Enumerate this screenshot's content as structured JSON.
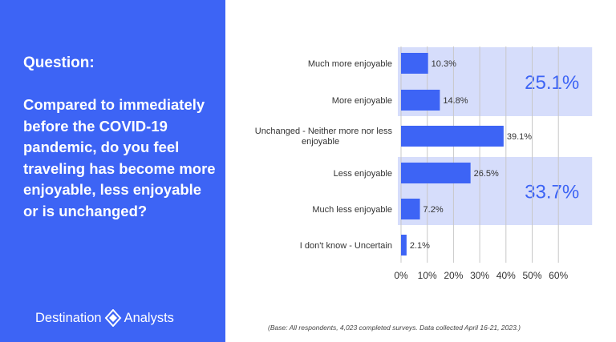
{
  "question_label": "Question:",
  "question_text": "Compared to immediately before the COVID-19 pandemic, do you feel traveling has become more enjoyable, less enjoyable or is unchanged?",
  "brand": {
    "name_left": "Destination",
    "name_right": "Analysts",
    "panel_color": "#3D64F5",
    "icon": "diamond-logo-icon"
  },
  "footnote": "(Base: All respondents, 4,023 completed surveys. Data collected April 16-21, 2023.)",
  "chart_data": {
    "type": "bar",
    "orientation": "horizontal",
    "categories": [
      "Much more enjoyable",
      "More enjoyable",
      "Unchanged - Neither more nor less enjoyable",
      "Less enjoyable",
      "Much less enjoyable",
      "I don't know - Uncertain"
    ],
    "values": [
      10.3,
      14.8,
      39.1,
      26.5,
      7.2,
      2.1
    ],
    "value_labels": [
      "10.3%",
      "14.8%",
      "39.1%",
      "26.5%",
      "7.2%",
      "2.1%"
    ],
    "xlim": [
      0,
      60
    ],
    "x_ticks": [
      0,
      10,
      20,
      30,
      40,
      50,
      60
    ],
    "x_tick_labels": [
      "0%",
      "10%",
      "20%",
      "30%",
      "40%",
      "50%",
      "60%"
    ],
    "grid": true,
    "bar_color": "#3D64F5",
    "group_color": "#D6DDFB",
    "groups": [
      {
        "label": "25.1%",
        "first": 0,
        "last": 1
      },
      {
        "label": "33.7%",
        "first": 3,
        "last": 4
      }
    ]
  }
}
